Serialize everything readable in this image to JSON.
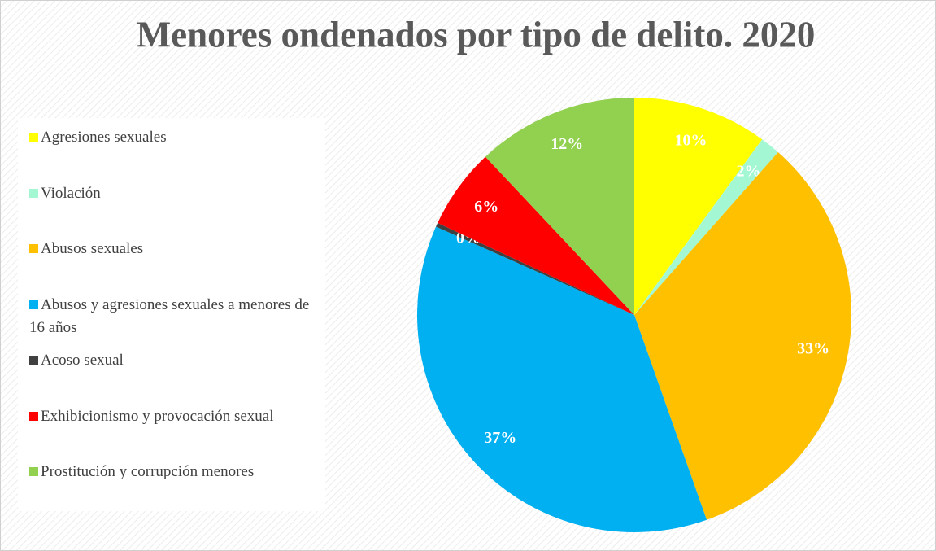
{
  "chart_data": {
    "type": "pie",
    "title": "Menores ondenados por tipo de delito. 2020",
    "categories": [
      "Agresiones sexuales",
      "Violación",
      "Abusos sexuales",
      "Abusos y agresiones sexuales a menores de 16 años",
      "Acoso sexual",
      "Exhibicionismo y provocación sexual",
      "Prostitución y corrupción menores"
    ],
    "values": [
      10,
      1.5,
      33,
      37,
      0.3,
      6,
      12
    ],
    "value_labels": [
      "10%",
      "2%",
      "33%",
      "37%",
      "0%",
      "6%",
      "12%"
    ],
    "colors": [
      "#ffff00",
      "#a3f7d3",
      "#ffc000",
      "#00b0f0",
      "#404040",
      "#ff0000",
      "#92d050"
    ],
    "legend": "left"
  }
}
